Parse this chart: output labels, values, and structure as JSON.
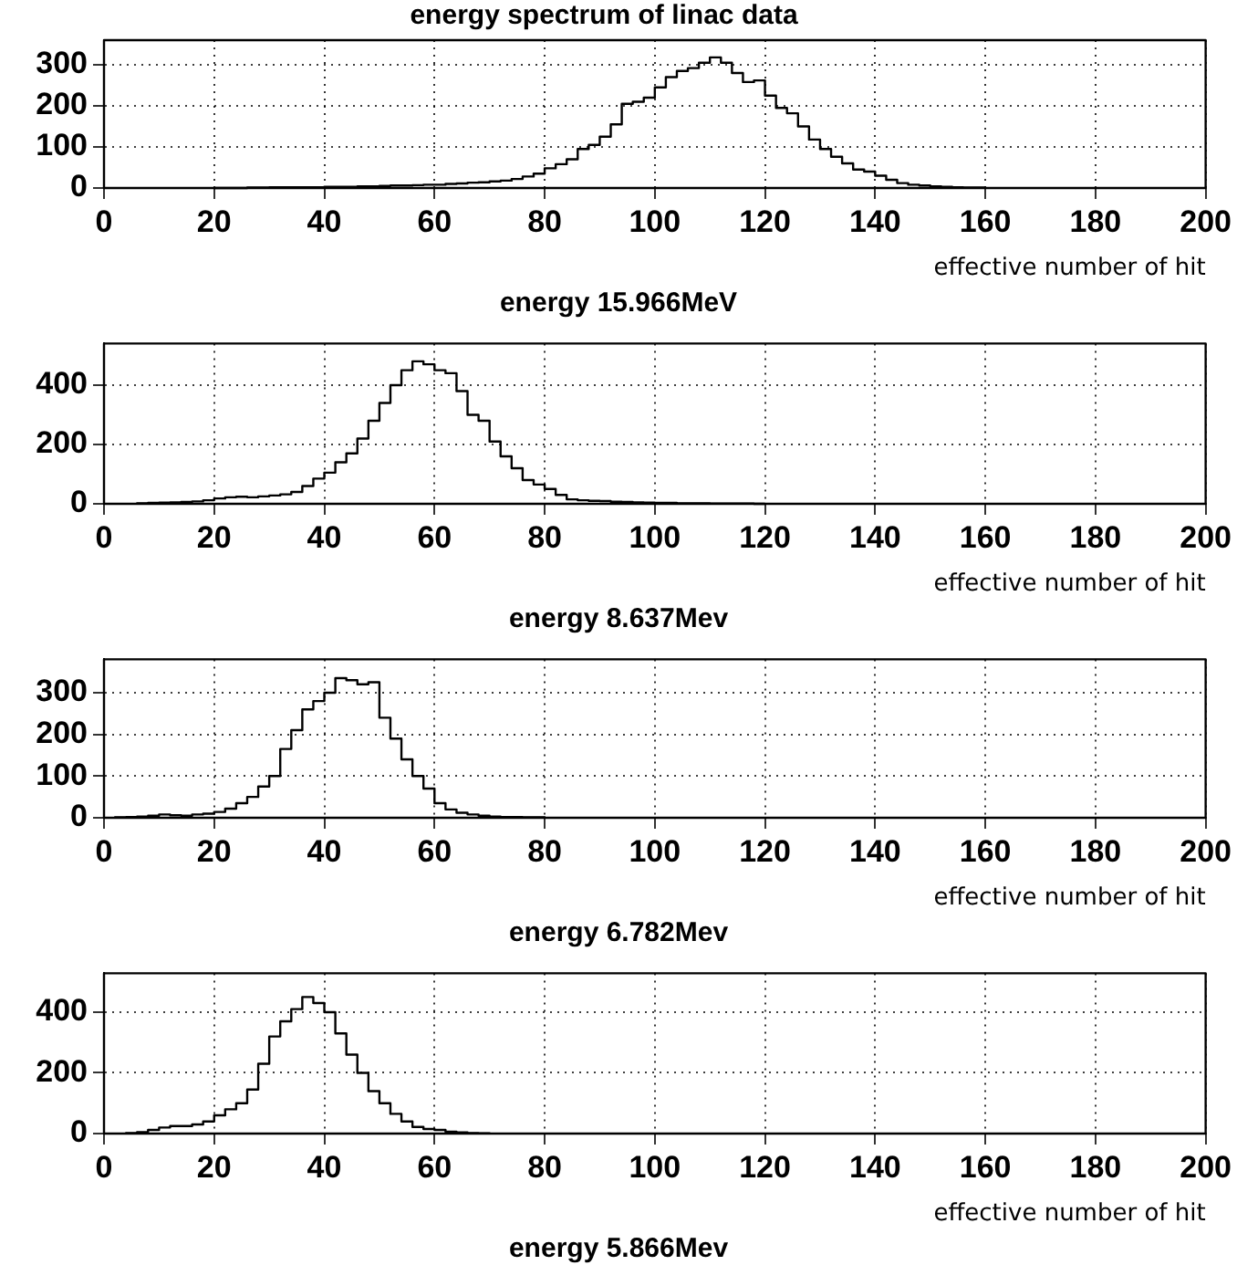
{
  "chart_data": [
    {
      "type": "histogram",
      "title": "energy spectrum of linac data",
      "xlabel": "effective number of hit",
      "annotations": [
        "energy 15.966MeV"
      ],
      "color": "#000000",
      "xlim": [
        0,
        200
      ],
      "xticks": [
        0,
        20,
        40,
        60,
        80,
        100,
        120,
        140,
        160,
        180,
        200
      ],
      "ylim": [
        0,
        360
      ],
      "yticks": [
        0,
        100,
        200,
        300
      ],
      "grid": true,
      "bins": [
        20,
        22,
        24,
        26,
        28,
        30,
        32,
        34,
        36,
        38,
        40,
        42,
        44,
        46,
        48,
        50,
        52,
        54,
        56,
        58,
        60,
        62,
        64,
        66,
        68,
        70,
        72,
        74,
        76,
        78,
        80,
        82,
        84,
        86,
        88,
        90,
        92,
        94,
        96,
        98,
        100,
        102,
        104,
        106,
        108,
        110,
        112,
        114,
        116,
        118,
        120,
        122,
        124,
        126,
        128,
        130,
        132,
        134,
        136,
        138,
        140,
        142,
        144,
        146,
        148,
        150,
        152,
        154,
        156,
        158,
        160
      ],
      "values": [
        0,
        0,
        0,
        1,
        1,
        2,
        2,
        2,
        2,
        2,
        3,
        3,
        3,
        4,
        4,
        5,
        6,
        6,
        7,
        8,
        8,
        10,
        11,
        13,
        14,
        16,
        18,
        22,
        28,
        35,
        48,
        58,
        70,
        95,
        105,
        125,
        155,
        205,
        210,
        220,
        245,
        270,
        285,
        292,
        305,
        318,
        305,
        280,
        258,
        262,
        225,
        195,
        182,
        150,
        118,
        95,
        76,
        60,
        45,
        40,
        30,
        20,
        12,
        8,
        6,
        4,
        3,
        2,
        1,
        1
      ]
    },
    {
      "type": "histogram",
      "xlabel": "effective number of hit",
      "annotations": [
        "energy 8.637Mev"
      ],
      "color": "#000000",
      "xlim": [
        0,
        200
      ],
      "xticks": [
        0,
        20,
        40,
        60,
        80,
        100,
        120,
        140,
        160,
        180,
        200
      ],
      "ylim": [
        0,
        540
      ],
      "yticks": [
        0,
        200,
        400
      ],
      "grid": true,
      "bins": [
        6,
        8,
        10,
        12,
        14,
        16,
        18,
        20,
        22,
        24,
        26,
        28,
        30,
        32,
        34,
        36,
        38,
        40,
        42,
        44,
        46,
        48,
        50,
        52,
        54,
        56,
        58,
        60,
        62,
        64,
        66,
        68,
        70,
        72,
        74,
        76,
        78,
        80,
        82,
        84,
        86,
        88,
        90,
        92,
        94,
        96,
        98,
        100,
        102,
        104,
        106,
        108,
        110,
        112,
        114,
        116,
        118,
        120
      ],
      "values": [
        2,
        3,
        4,
        5,
        6,
        8,
        12,
        18,
        22,
        24,
        22,
        25,
        28,
        32,
        40,
        60,
        85,
        105,
        140,
        170,
        220,
        280,
        340,
        400,
        450,
        480,
        470,
        450,
        440,
        380,
        300,
        280,
        210,
        160,
        120,
        80,
        65,
        50,
        30,
        15,
        12,
        10,
        9,
        7,
        6,
        5,
        4,
        3,
        3,
        2,
        2,
        2,
        1,
        1,
        1,
        1,
        0
      ]
    },
    {
      "type": "histogram",
      "xlabel": "effective number of hit",
      "annotations": [
        "energy 6.782Mev"
      ],
      "color": "#000000",
      "xlim": [
        0,
        200
      ],
      "xticks": [
        0,
        20,
        40,
        60,
        80,
        100,
        120,
        140,
        160,
        180,
        200
      ],
      "ylim": [
        0,
        380
      ],
      "yticks": [
        0,
        100,
        200,
        300
      ],
      "grid": true,
      "bins": [
        2,
        4,
        6,
        8,
        10,
        12,
        14,
        16,
        18,
        20,
        22,
        24,
        26,
        28,
        30,
        32,
        34,
        36,
        38,
        40,
        42,
        44,
        46,
        48,
        50,
        52,
        54,
        56,
        58,
        60,
        62,
        64,
        66,
        68,
        70,
        72,
        74,
        76,
        78,
        80
      ],
      "values": [
        1,
        2,
        3,
        5,
        8,
        6,
        5,
        8,
        10,
        14,
        22,
        35,
        50,
        75,
        100,
        165,
        210,
        260,
        280,
        300,
        335,
        330,
        320,
        325,
        240,
        190,
        140,
        100,
        70,
        35,
        20,
        12,
        8,
        5,
        3,
        2,
        2,
        1,
        1
      ]
    },
    {
      "type": "histogram",
      "xlabel": "effective number of hit",
      "annotations": [
        "energy 5.866Mev"
      ],
      "color": "#000000",
      "xlim": [
        0,
        200
      ],
      "xticks": [
        0,
        20,
        40,
        60,
        80,
        100,
        120,
        140,
        160,
        180,
        200
      ],
      "ylim": [
        0,
        528
      ],
      "yticks": [
        0,
        200,
        400
      ],
      "grid": true,
      "bins": [
        4,
        6,
        8,
        10,
        12,
        14,
        16,
        18,
        20,
        22,
        24,
        26,
        28,
        30,
        32,
        34,
        36,
        38,
        40,
        42,
        44,
        46,
        48,
        50,
        52,
        54,
        56,
        58,
        60,
        62,
        64,
        66,
        68,
        70
      ],
      "values": [
        2,
        5,
        12,
        20,
        25,
        25,
        30,
        40,
        60,
        80,
        100,
        145,
        230,
        320,
        370,
        410,
        450,
        430,
        400,
        330,
        260,
        200,
        140,
        100,
        65,
        40,
        22,
        15,
        12,
        6,
        4,
        2,
        1
      ]
    }
  ]
}
